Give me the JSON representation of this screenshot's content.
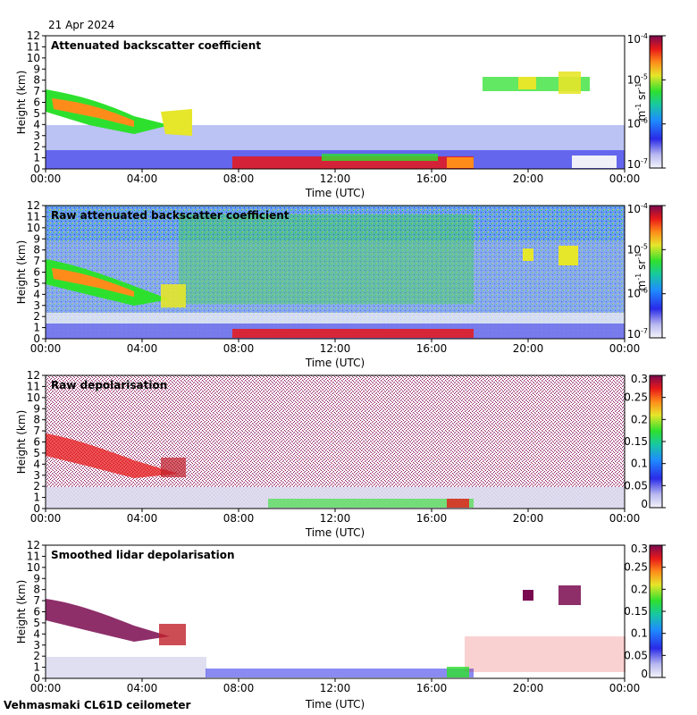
{
  "date_label": "21 Apr 2024",
  "footer_label": "Vehmasmaki CL61D ceilometer",
  "colors": {
    "background": "#ffffff",
    "axis": "#000000"
  },
  "chart_data": [
    {
      "type": "heatmap",
      "title": "Attenuated backscatter coefficient",
      "xlabel": "Time (UTC)",
      "ylabel": "Height (km)",
      "x_ticks": [
        "00:00",
        "04:00",
        "08:00",
        "12:00",
        "16:00",
        "20:00",
        "00:00"
      ],
      "y_ticks": [
        "0",
        "1",
        "2",
        "3",
        "4",
        "5",
        "6",
        "7",
        "8",
        "9",
        "10",
        "11",
        "12"
      ],
      "ylim": [
        0,
        12
      ],
      "xlim_hours": [
        0,
        24
      ],
      "colorbar": {
        "scale": "log",
        "range": [
          1e-07,
          0.0001
        ],
        "ticks": [
          "10",
          "10",
          "10",
          "10"
        ],
        "tick_exponents": [
          "-7",
          "-6",
          "-5",
          "-4"
        ],
        "unit_base": "m",
        "unit_base_exp": "-1",
        "unit_rest": " sr",
        "unit_rest_exp": "-1"
      }
    },
    {
      "type": "heatmap",
      "title": "Raw attenuated backscatter coefficient",
      "xlabel": "Time (UTC)",
      "ylabel": "Height (km)",
      "x_ticks": [
        "00:00",
        "04:00",
        "08:00",
        "12:00",
        "16:00",
        "20:00",
        "00:00"
      ],
      "y_ticks": [
        "0",
        "1",
        "2",
        "3",
        "4",
        "5",
        "6",
        "7",
        "8",
        "9",
        "10",
        "11",
        "12"
      ],
      "ylim": [
        0,
        12
      ],
      "xlim_hours": [
        0,
        24
      ],
      "colorbar": {
        "scale": "log",
        "range": [
          1e-07,
          0.0001
        ],
        "ticks": [
          "10",
          "10",
          "10",
          "10"
        ],
        "tick_exponents": [
          "-7",
          "-6",
          "-5",
          "-4"
        ],
        "unit_base": "m",
        "unit_base_exp": "-1",
        "unit_rest": " sr",
        "unit_rest_exp": "-1"
      }
    },
    {
      "type": "heatmap",
      "title": "Raw depolarisation",
      "xlabel": "Time (UTC)",
      "ylabel": "Height (km)",
      "x_ticks": [
        "00:00",
        "04:00",
        "08:00",
        "12:00",
        "16:00",
        "20:00",
        "00:00"
      ],
      "y_ticks": [
        "0",
        "1",
        "2",
        "3",
        "4",
        "5",
        "6",
        "7",
        "8",
        "9",
        "10",
        "11",
        "12"
      ],
      "ylim": [
        0,
        12
      ],
      "xlim_hours": [
        0,
        24
      ],
      "colorbar": {
        "scale": "linear",
        "range": [
          0,
          0.3
        ],
        "ticks": [
          "0",
          "0.05",
          "0.1",
          "0.15",
          "0.2",
          "0.25",
          "0.3"
        ]
      }
    },
    {
      "type": "heatmap",
      "title": "Smoothed lidar depolarisation",
      "xlabel": "Time (UTC)",
      "ylabel": "Height (km)",
      "x_ticks": [
        "00:00",
        "04:00",
        "08:00",
        "12:00",
        "16:00",
        "20:00",
        "00:00"
      ],
      "y_ticks": [
        "0",
        "1",
        "2",
        "3",
        "4",
        "5",
        "6",
        "7",
        "8",
        "9",
        "10",
        "11",
        "12"
      ],
      "ylim": [
        0,
        12
      ],
      "xlim_hours": [
        0,
        24
      ],
      "colorbar": {
        "scale": "linear",
        "range": [
          0,
          0.3
        ],
        "ticks": [
          "0",
          "0.05",
          "0.1",
          "0.15",
          "0.2",
          "0.25",
          "0.3"
        ]
      }
    }
  ]
}
